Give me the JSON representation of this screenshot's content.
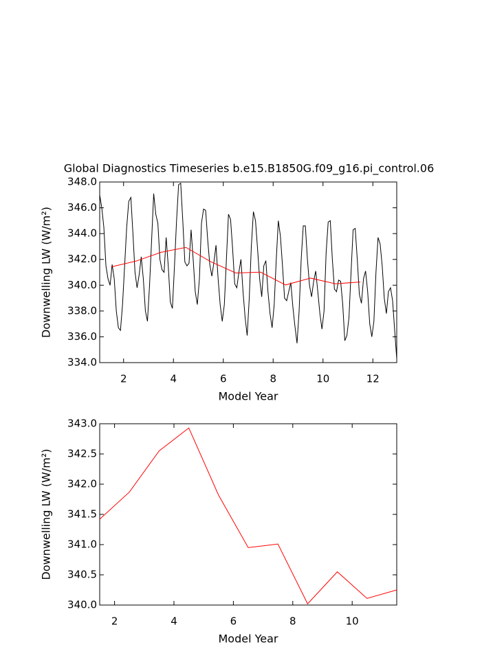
{
  "chart_data": [
    {
      "type": "line",
      "title": "Global Diagnostics Timeseries b.e15.B1850G.f09_g16.pi_control.06",
      "ylabel": "Downwelling LW (W/m²)",
      "xlabel": "Model Year",
      "xlim": [
        1.042,
        12.958
      ],
      "xticks": [
        2,
        4,
        6,
        8,
        10,
        12
      ],
      "ylim": [
        334,
        348
      ],
      "yticks": [
        {
          "value": 334,
          "label": "334.0"
        },
        {
          "value": 336,
          "label": "336.0"
        },
        {
          "value": 338,
          "label": "338.0"
        },
        {
          "value": 340,
          "label": "340.0"
        },
        {
          "value": 342,
          "label": "342.0"
        },
        {
          "value": 344,
          "label": "344.0"
        },
        {
          "value": 346,
          "label": "346.0"
        },
        {
          "value": 348,
          "label": "348.0"
        }
      ],
      "series": [
        {
          "color": "#000000",
          "x": [
            1.042,
            1.125,
            1.208,
            1.292,
            1.375,
            1.458,
            1.542,
            1.625,
            1.708,
            1.792,
            1.875,
            1.958,
            2.042,
            2.125,
            2.208,
            2.292,
            2.375,
            2.458,
            2.542,
            2.625,
            2.708,
            2.792,
            2.875,
            2.958,
            3.042,
            3.125,
            3.208,
            3.292,
            3.375,
            3.458,
            3.542,
            3.625,
            3.708,
            3.792,
            3.875,
            3.958,
            4.042,
            4.125,
            4.208,
            4.292,
            4.375,
            4.458,
            4.542,
            4.625,
            4.708,
            4.792,
            4.875,
            4.958,
            5.042,
            5.125,
            5.208,
            5.292,
            5.375,
            5.458,
            5.542,
            5.625,
            5.708,
            5.792,
            5.875,
            5.958,
            6.042,
            6.125,
            6.208,
            6.292,
            6.375,
            6.458,
            6.542,
            6.625,
            6.708,
            6.792,
            6.875,
            6.958,
            7.042,
            7.125,
            7.208,
            7.292,
            7.375,
            7.458,
            7.542,
            7.625,
            7.708,
            7.792,
            7.875,
            7.958,
            8.042,
            8.125,
            8.208,
            8.292,
            8.375,
            8.458,
            8.542,
            8.625,
            8.708,
            8.792,
            8.875,
            8.958,
            9.042,
            9.125,
            9.208,
            9.292,
            9.375,
            9.458,
            9.542,
            9.625,
            9.708,
            9.792,
            9.875,
            9.958,
            10.042,
            10.125,
            10.208,
            10.292,
            10.375,
            10.458,
            10.542,
            10.625,
            10.708,
            10.792,
            10.875,
            10.958,
            11.042,
            11.125,
            11.208,
            11.292,
            11.375,
            11.458,
            11.542,
            11.625,
            11.708,
            11.792,
            11.875,
            11.958,
            12.042,
            12.125,
            12.208,
            12.292,
            12.375,
            12.458,
            12.542,
            12.625,
            12.708,
            12.792,
            12.875,
            12.958
          ],
          "values": [
            347.0,
            346.0,
            344.5,
            341.5,
            340.5,
            340.0,
            341.6,
            340.5,
            338.0,
            336.7,
            336.5,
            338.5,
            341.5,
            344.5,
            346.5,
            346.8,
            344.0,
            341.0,
            339.8,
            340.8,
            342.2,
            340.5,
            338.0,
            337.2,
            340.0,
            343.5,
            347.1,
            345.5,
            344.8,
            342.0,
            341.2,
            341.0,
            343.7,
            341.5,
            338.7,
            338.2,
            341.5,
            345.0,
            347.8,
            347.9,
            345.0,
            341.8,
            341.5,
            341.7,
            344.3,
            342.0,
            339.5,
            338.5,
            340.5,
            344.8,
            345.9,
            345.8,
            343.5,
            341.6,
            340.7,
            341.8,
            343.1,
            340.5,
            338.5,
            337.2,
            338.5,
            342.0,
            345.5,
            345.1,
            342.8,
            340.1,
            339.8,
            341.0,
            342.0,
            339.5,
            337.5,
            336.1,
            339.0,
            343.0,
            345.7,
            345.0,
            342.8,
            340.5,
            339.1,
            341.5,
            341.9,
            339.5,
            337.8,
            336.7,
            338.5,
            342.0,
            345.0,
            343.8,
            341.5,
            339.0,
            338.8,
            339.5,
            340.2,
            338.3,
            336.8,
            335.5,
            338.0,
            342.0,
            344.6,
            344.6,
            342.0,
            340.0,
            339.1,
            340.3,
            341.1,
            339.5,
            337.8,
            336.6,
            338.0,
            342.5,
            344.9,
            345.0,
            342.0,
            339.7,
            339.5,
            340.4,
            340.3,
            338.5,
            335.7,
            336.1,
            337.5,
            341.0,
            344.3,
            344.4,
            342.0,
            339.3,
            338.6,
            340.5,
            341.1,
            339.5,
            337.0,
            336.0,
            337.2,
            341.0,
            343.7,
            343.2,
            341.5,
            339.0,
            337.8,
            339.5,
            339.8,
            338.8,
            336.5,
            334.3
          ]
        },
        {
          "color": "#ff0000",
          "x": [
            1.5,
            2.5,
            3.5,
            4.5,
            5.5,
            6.5,
            7.5,
            8.5,
            9.5,
            10.5,
            11.5
          ],
          "values": [
            341.42,
            341.87,
            342.55,
            342.93,
            341.82,
            340.95,
            341.01,
            340.02,
            340.55,
            340.11,
            340.25
          ]
        }
      ]
    },
    {
      "type": "line",
      "ylabel": "Downwelling LW (W/m²)",
      "xlabel": "Model Year",
      "xlim": [
        1.5,
        11.5
      ],
      "xticks": [
        2,
        4,
        6,
        8,
        10
      ],
      "ylim": [
        340,
        343
      ],
      "yticks": [
        {
          "value": 340,
          "label": "340.0"
        },
        {
          "value": 340.5,
          "label": "340.5"
        },
        {
          "value": 341,
          "label": "341.0"
        },
        {
          "value": 341.5,
          "label": "341.5"
        },
        {
          "value": 342,
          "label": "342.0"
        },
        {
          "value": 342.5,
          "label": "342.5"
        },
        {
          "value": 343,
          "label": "343.0"
        }
      ],
      "series": [
        {
          "color": "#ff0000",
          "x": [
            1.5,
            2.5,
            3.5,
            4.5,
            5.5,
            6.5,
            7.5,
            8.5,
            9.5,
            10.5,
            11.5
          ],
          "values": [
            341.42,
            341.87,
            342.55,
            342.93,
            341.82,
            340.95,
            341.01,
            340.02,
            340.55,
            340.11,
            340.25
          ]
        }
      ]
    }
  ]
}
